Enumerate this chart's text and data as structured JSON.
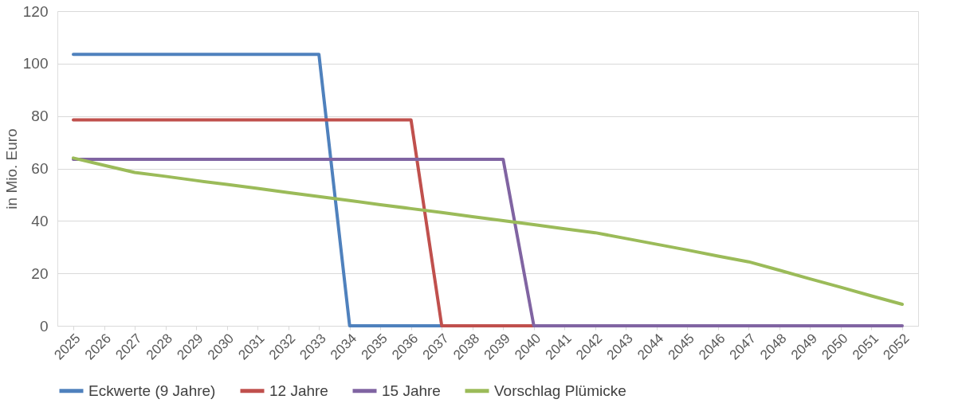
{
  "chart_data": {
    "type": "line",
    "ylabel": "in Mio. Euro",
    "categories": [
      "2025",
      "2026",
      "2027",
      "2028",
      "2029",
      "2030",
      "2031",
      "2032",
      "2033",
      "2034",
      "2035",
      "2036",
      "2037",
      "2038",
      "2039",
      "2040",
      "2041",
      "2042",
      "2043",
      "2044",
      "2045",
      "2046",
      "2047",
      "2048",
      "2049",
      "2050",
      "2051",
      "2052"
    ],
    "series": [
      {
        "name": "Eckwerte (9 Jahre)",
        "color": "#4f81bd",
        "values": [
          103.5,
          103.5,
          103.5,
          103.5,
          103.5,
          103.5,
          103.5,
          103.5,
          103.5,
          0,
          0,
          0,
          0,
          null,
          null,
          null,
          null,
          null,
          null,
          null,
          null,
          null,
          null,
          null,
          null,
          null,
          null,
          null
        ]
      },
      {
        "name": "12 Jahre",
        "color": "#c0504d",
        "values": [
          78.5,
          78.5,
          78.5,
          78.5,
          78.5,
          78.5,
          78.5,
          78.5,
          78.5,
          78.5,
          78.5,
          78.5,
          0,
          0,
          0,
          0,
          0,
          null,
          null,
          null,
          null,
          null,
          null,
          null,
          null,
          null,
          null,
          null
        ]
      },
      {
        "name": "15 Jahre",
        "color": "#8064a2",
        "values": [
          63.5,
          63.5,
          63.5,
          63.5,
          63.5,
          63.5,
          63.5,
          63.5,
          63.5,
          63.5,
          63.5,
          63.5,
          63.5,
          63.5,
          63.5,
          0,
          0,
          0,
          0,
          0,
          0,
          0,
          0,
          0,
          0,
          0,
          0,
          0
        ]
      },
      {
        "name": "Vorschlag Plümicke",
        "color": "#9bbb59",
        "values": [
          64,
          61.2,
          58.5,
          57,
          55.4,
          53.9,
          52.4,
          50.8,
          49.3,
          47.8,
          46.2,
          44.7,
          43.2,
          41.6,
          40.1,
          38.6,
          37,
          35.5,
          33.3,
          31.1,
          28.9,
          26.6,
          24.4,
          21.2,
          17.9,
          14.7,
          11.4,
          8.2
        ]
      }
    ],
    "ylim": [
      0,
      120
    ],
    "yticks": [
      0,
      20,
      40,
      60,
      80,
      100,
      120
    ],
    "grid": "y",
    "legend": "bottom",
    "marker": "none",
    "line_style": "solid"
  }
}
